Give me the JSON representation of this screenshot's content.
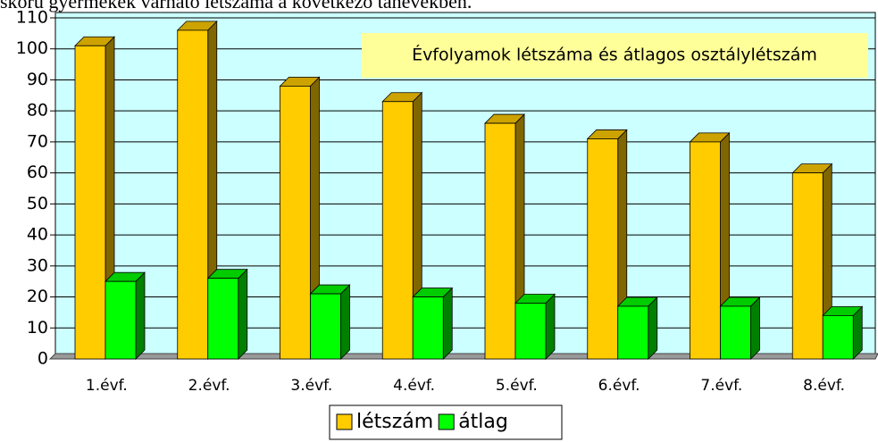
{
  "chart_data": {
    "type": "bar3d",
    "title": "skorú gyermekek várható létszáma a következő tanévekben.",
    "annotation": "Évfolyamok létszáma és átlagos osztálylétszám",
    "categories": [
      "1.évf.",
      "2.évf.",
      "3.évf.",
      "4.évf.",
      "5.évf.",
      "6.évf.",
      "7.évf.",
      "8.évf."
    ],
    "series": [
      {
        "name": "létszám",
        "color": "#ffcc00",
        "values": [
          101,
          106,
          88,
          83,
          76,
          71,
          70,
          60
        ]
      },
      {
        "name": "átlag",
        "color": "#00ff00",
        "values": [
          25,
          26,
          21,
          20,
          18,
          17,
          17,
          14
        ]
      }
    ],
    "ylim": [
      0,
      110
    ],
    "yticks": [
      0,
      10,
      20,
      30,
      40,
      50,
      60,
      70,
      80,
      90,
      100,
      110
    ],
    "grid": true,
    "legend": "bottom"
  }
}
